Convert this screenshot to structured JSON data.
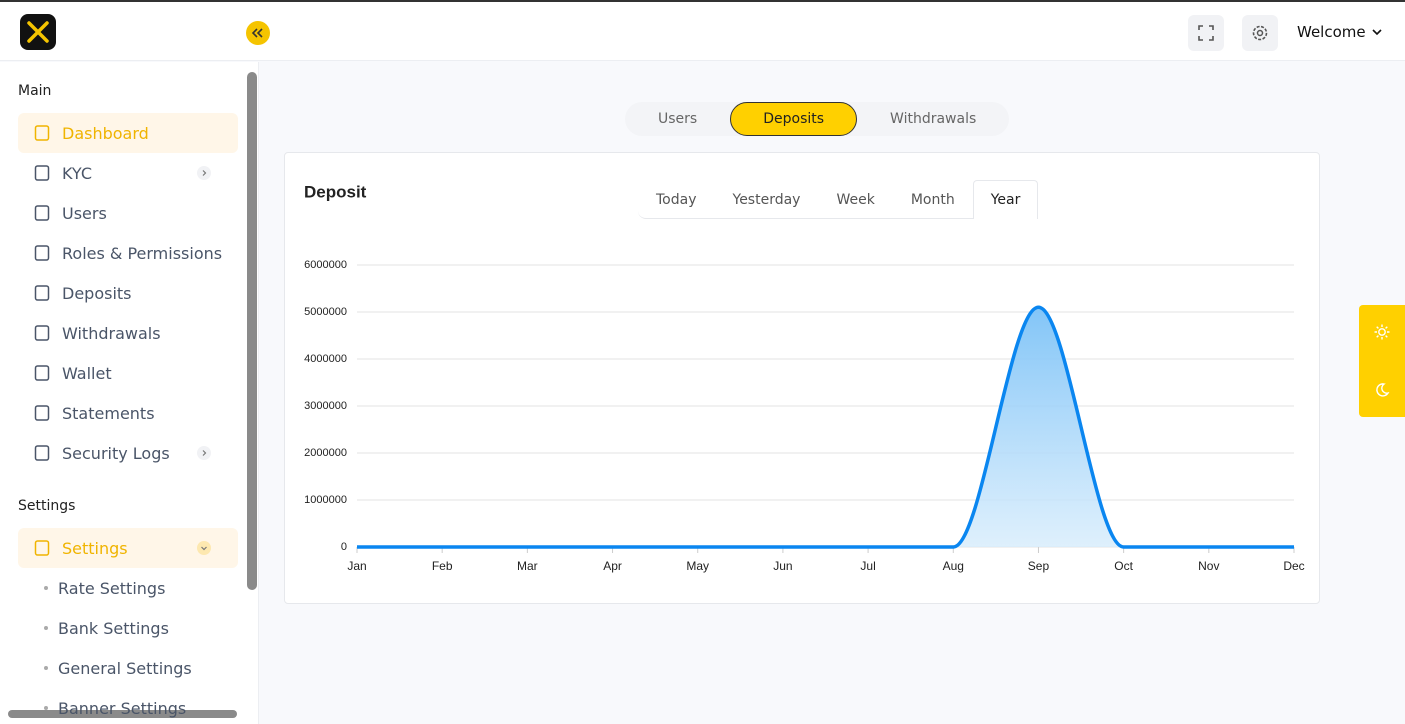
{
  "header": {
    "welcome": "Welcome"
  },
  "sidebar": {
    "main_heading": "Main",
    "main_items": [
      "Dashboard",
      "KYC",
      "Users",
      "Roles & Permissions",
      "Deposits",
      "Withdrawals",
      "Wallet",
      "Statements",
      "Security Logs"
    ],
    "settings_heading": "Settings",
    "settings_item": "Settings",
    "settings_subitems": [
      "Rate Settings",
      "Bank Settings",
      "General Settings",
      "Banner Settings"
    ]
  },
  "tabs": [
    "Users",
    "Deposits",
    "Withdrawals"
  ],
  "period_tabs": [
    "Today",
    "Yesterday",
    "Week",
    "Month",
    "Year"
  ],
  "chart_data": {
    "type": "area",
    "title": "Deposit",
    "categories": [
      "Jan",
      "Feb",
      "Mar",
      "Apr",
      "May",
      "Jun",
      "Jul",
      "Aug",
      "Sep",
      "Oct",
      "Nov",
      "Dec"
    ],
    "values": [
      0,
      0,
      0,
      0,
      0,
      0,
      0,
      0,
      5100000,
      0,
      0,
      0
    ],
    "color": "#0a86f0",
    "ylim": [
      0,
      6000000
    ],
    "yticks": [
      0,
      1000000,
      2000000,
      3000000,
      4000000,
      5000000,
      6000000
    ],
    "grid": true
  }
}
